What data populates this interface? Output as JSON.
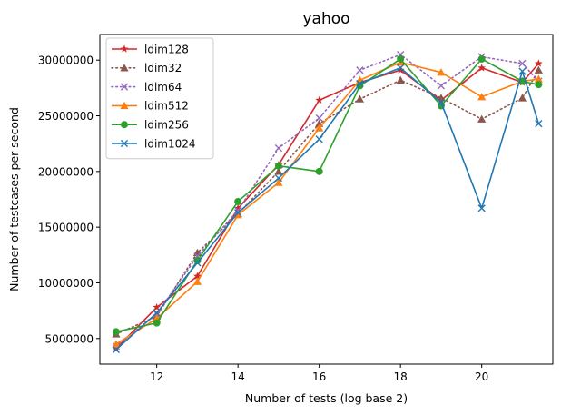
{
  "chart_data": {
    "type": "line",
    "title": "yahoo",
    "xlabel": "Number of tests (log base 2)",
    "ylabel": "Number of testcases per second",
    "xlim": [
      10.6,
      21.75
    ],
    "ylim": [
      2700000,
      32300000
    ],
    "x_ticks": [
      12,
      14,
      16,
      18,
      20
    ],
    "y_ticks": [
      5000000,
      10000000,
      15000000,
      20000000,
      25000000,
      30000000
    ],
    "x_tick_labels": [
      "12",
      "14",
      "16",
      "18",
      "20"
    ],
    "y_tick_labels": [
      "5000000",
      "10000000",
      "15000000",
      "20000000",
      "25000000",
      "30000000"
    ],
    "legend_position": "top-left",
    "grid": false,
    "series": [
      {
        "name": "ldim128",
        "color": "#d62728",
        "marker": "star",
        "linestyle": "solid",
        "x": [
          11,
          12,
          13,
          14,
          15,
          16,
          17,
          18,
          19,
          20,
          21,
          21.4
        ],
        "y": [
          4100000,
          7800000,
          10600000,
          16700000,
          20600000,
          26400000,
          28000000,
          29100000,
          26400000,
          29300000,
          28000000,
          29700000
        ]
      },
      {
        "name": "ldim32",
        "color": "#8c564b",
        "marker": "triangle",
        "linestyle": "dotted",
        "x": [
          11,
          12,
          13,
          14,
          15,
          16,
          17,
          18,
          19,
          20,
          21,
          21.4
        ],
        "y": [
          5400000,
          7000000,
          12700000,
          16200000,
          20000000,
          24300000,
          26500000,
          28200000,
          26600000,
          24700000,
          26600000,
          29100000
        ]
      },
      {
        "name": "ldim64",
        "color": "#9467bd",
        "marker": "x",
        "linestyle": "dotted",
        "x": [
          11,
          12,
          13,
          14,
          15,
          16,
          17,
          18,
          19,
          20,
          21,
          21.4
        ],
        "y": [
          4300000,
          7200000,
          12400000,
          16500000,
          22100000,
          24800000,
          29100000,
          30500000,
          27700000,
          30300000,
          29700000,
          28100000
        ]
      },
      {
        "name": "ldim512",
        "color": "#ff7f0e",
        "marker": "triangle",
        "linestyle": "solid",
        "x": [
          11,
          12,
          13,
          14,
          15,
          16,
          17,
          18,
          19,
          20,
          21,
          21.4
        ],
        "y": [
          4500000,
          6800000,
          10100000,
          16100000,
          19000000,
          23900000,
          28200000,
          29800000,
          28900000,
          26700000,
          28100000,
          28300000
        ]
      },
      {
        "name": "ldim256",
        "color": "#2ca02c",
        "marker": "circle",
        "linestyle": "solid",
        "x": [
          11,
          12,
          13,
          14,
          15,
          16,
          17,
          18,
          19,
          20,
          21,
          21.4
        ],
        "y": [
          5600000,
          6400000,
          12000000,
          17300000,
          20500000,
          20000000,
          27700000,
          30100000,
          25900000,
          30100000,
          28100000,
          27800000
        ]
      },
      {
        "name": "ldim1024",
        "color": "#1f77b4",
        "marker": "x",
        "linestyle": "solid",
        "x": [
          11,
          12,
          13,
          14,
          15,
          16,
          17,
          18,
          19,
          20,
          21,
          21.4
        ],
        "y": [
          4000000,
          7300000,
          11800000,
          16300000,
          19400000,
          22900000,
          27900000,
          29300000,
          26200000,
          16700000,
          29000000,
          24300000
        ]
      }
    ]
  }
}
